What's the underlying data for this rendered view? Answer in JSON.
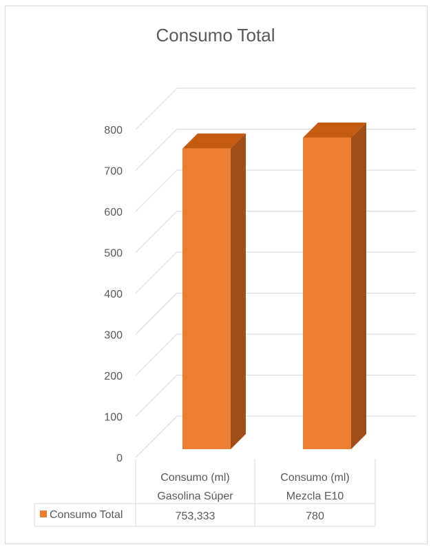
{
  "chart_data": {
    "type": "bar",
    "title": "Consumo Total",
    "categories": [
      [
        "Consumo (ml)",
        "Gasolina Súper"
      ],
      [
        "Consumo (ml)",
        "Mezcla E10"
      ]
    ],
    "series": [
      {
        "name": "Consumo Total",
        "values": [
          753.333,
          780
        ]
      }
    ],
    "value_labels": [
      "753,333",
      "780"
    ],
    "ylim": [
      0,
      800
    ],
    "yticks": [
      "0",
      "100",
      "200",
      "300",
      "400",
      "500",
      "600",
      "700",
      "800"
    ],
    "grid": true,
    "legend": "data-table",
    "style": "3d-column",
    "colors": {
      "bar_front": "#ED7D31",
      "bar_top": "#C55A11",
      "bar_side": "#A04E18",
      "grid": "#d9d9d9",
      "text": "#595959"
    }
  }
}
